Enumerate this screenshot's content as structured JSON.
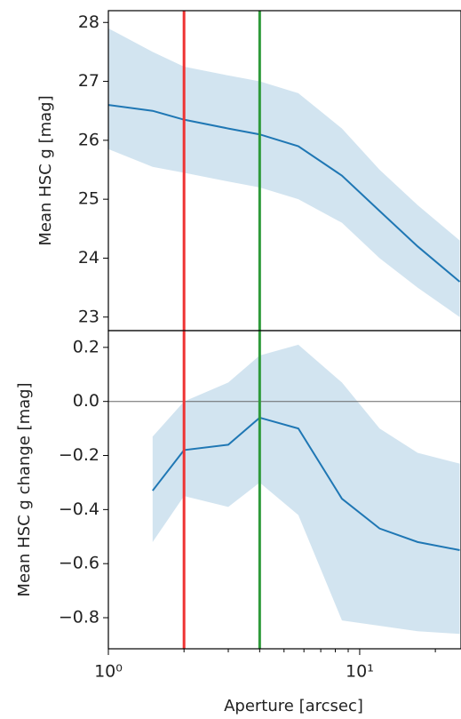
{
  "chart_data": [
    {
      "type": "line",
      "ylabel": "Mean HSC g [mag]",
      "x": [
        1,
        1.5,
        2,
        3,
        4,
        5.7,
        8.5,
        12,
        17,
        25
      ],
      "series": [
        {
          "name": "mean",
          "color": "#1f77b4",
          "values": [
            26.6,
            26.5,
            26.35,
            26.2,
            26.1,
            25.9,
            25.4,
            24.8,
            24.2,
            23.6
          ],
          "upper": [
            27.9,
            27.5,
            27.25,
            27.1,
            27.0,
            26.8,
            26.2,
            25.5,
            24.9,
            24.3
          ],
          "lower": [
            25.85,
            25.55,
            25.45,
            25.3,
            25.2,
            25.0,
            24.6,
            24.0,
            23.5,
            23.0
          ]
        }
      ],
      "xlim": [
        1,
        25.3
      ],
      "log_x": true,
      "ylim": [
        22.77,
        28.2
      ],
      "yticks": [
        23,
        24,
        25,
        26,
        27,
        28
      ],
      "vlines": [
        {
          "x": 2,
          "color": "#ee3333"
        },
        {
          "x": 4,
          "color": "#2e9a3a"
        }
      ]
    },
    {
      "type": "line",
      "ylabel": "Mean HSC g change [mag]",
      "xlabel": "Aperture [arcsec]",
      "x": [
        1,
        1.5,
        2,
        3,
        4,
        5.7,
        8.5,
        12,
        17,
        25
      ],
      "series": [
        {
          "name": "change",
          "color": "#1f77b4",
          "values": [
            null,
            -0.33,
            -0.18,
            -0.16,
            -0.06,
            -0.1,
            -0.36,
            -0.47,
            -0.52,
            -0.55
          ],
          "upper": [
            null,
            -0.13,
            0.0,
            0.07,
            0.17,
            0.21,
            0.07,
            -0.1,
            -0.19,
            -0.23
          ],
          "lower": [
            null,
            -0.52,
            -0.35,
            -0.39,
            -0.3,
            -0.42,
            -0.81,
            -0.83,
            -0.85,
            -0.86
          ]
        }
      ],
      "xlim": [
        1,
        25.3
      ],
      "log_x": true,
      "xticks": [
        {
          "value": 1,
          "label": "10⁰"
        },
        {
          "value": 10,
          "label": "10¹"
        }
      ],
      "ylim": [
        -0.915,
        0.262
      ],
      "yticks": [
        {
          "value": -0.8,
          "label": "−0.8"
        },
        {
          "value": -0.6,
          "label": "−0.6"
        },
        {
          "value": -0.4,
          "label": "−0.4"
        },
        {
          "value": -0.2,
          "label": "−0.2"
        },
        {
          "value": 0,
          "label": "0.0"
        },
        {
          "value": 0.2,
          "label": "0.2"
        }
      ],
      "hline": 0,
      "vlines": [
        {
          "x": 2,
          "color": "#ee3333"
        },
        {
          "x": 4,
          "color": "#2e9a3a"
        }
      ]
    }
  ]
}
